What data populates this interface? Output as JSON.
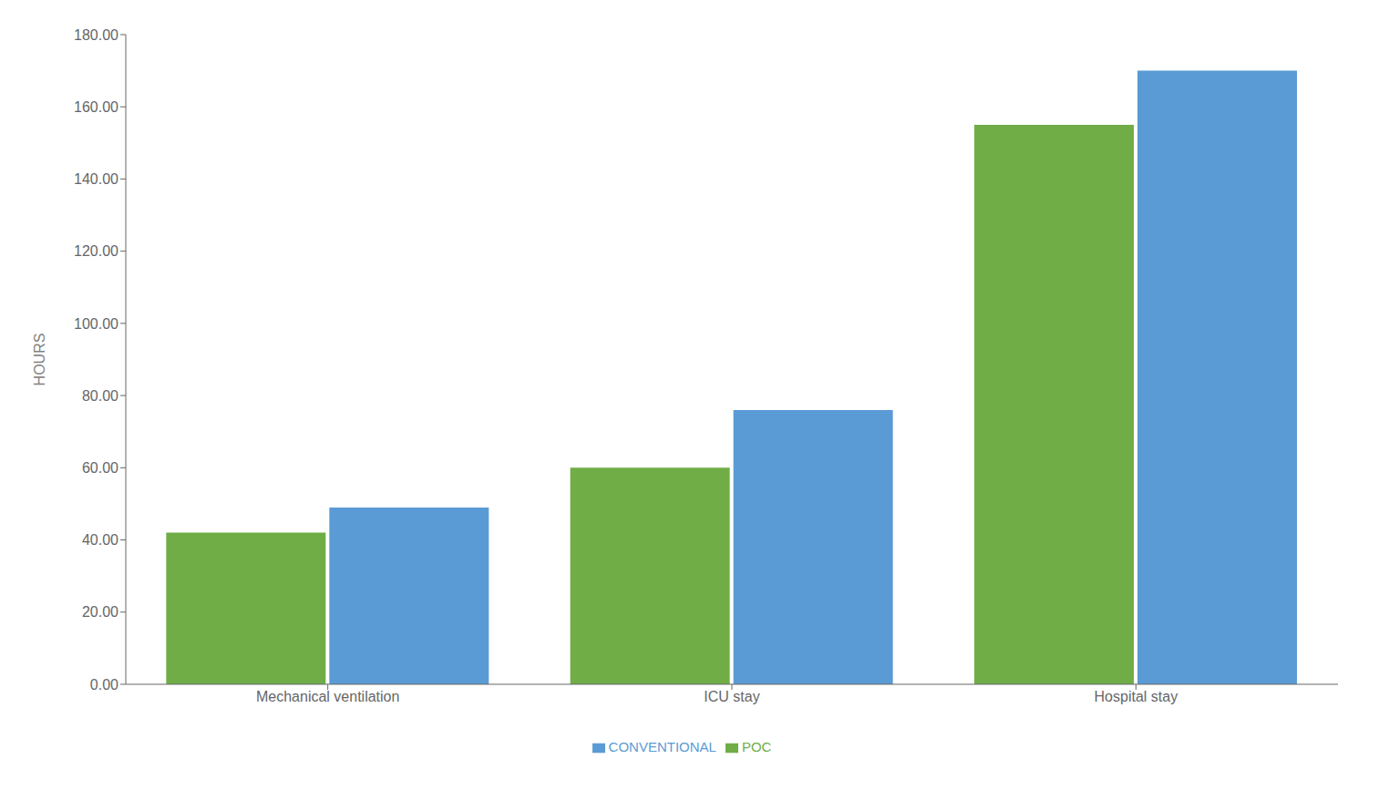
{
  "chart_data": {
    "type": "bar",
    "categories": [
      "Mechanical ventilation",
      "ICU stay",
      "Hospital stay"
    ],
    "series": [
      {
        "name": "POC",
        "color": "#70ad47",
        "values": [
          42.0,
          60.0,
          155.0
        ]
      },
      {
        "name": "CONVENTIONAL",
        "color": "#5b9bd5",
        "values": [
          49.0,
          76.0,
          170.0
        ]
      }
    ],
    "ylabel": "HOURS",
    "ylim": [
      0,
      180
    ],
    "yticks": [
      {
        "value": 0,
        "label": "0.00"
      },
      {
        "value": 20,
        "label": "20.00"
      },
      {
        "value": 40,
        "label": "40.00"
      },
      {
        "value": 60,
        "label": "60.00"
      },
      {
        "value": 80,
        "label": "80.00"
      },
      {
        "value": 100,
        "label": "100.00"
      },
      {
        "value": 120,
        "label": "120.00"
      },
      {
        "value": 140,
        "label": "140.00"
      },
      {
        "value": 160,
        "label": "160.00"
      },
      {
        "value": 180,
        "label": "180.00"
      }
    ],
    "grid": false,
    "legend": "bottom"
  }
}
